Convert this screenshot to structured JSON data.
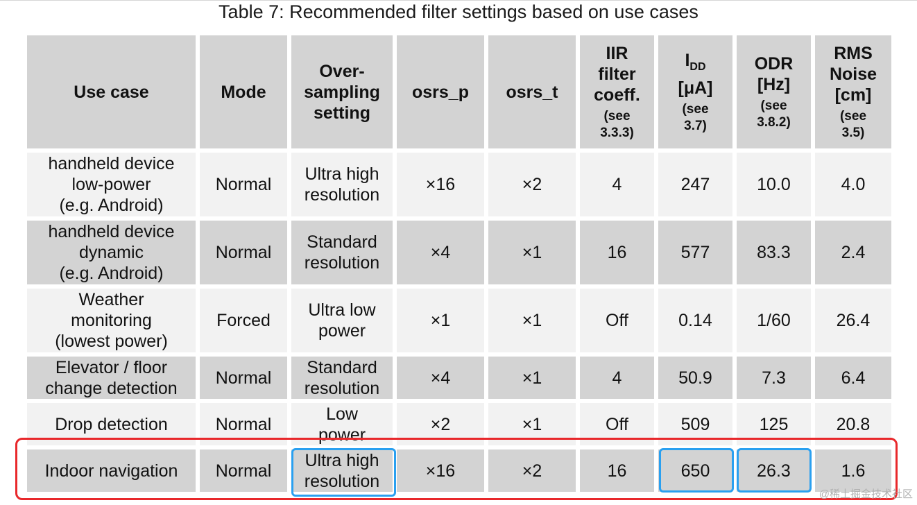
{
  "title": "Table 7: Recommended filter settings based on use cases",
  "header": {
    "use_case": "Use case",
    "mode": "Mode",
    "oversampling_lines": [
      "Over-",
      "sampling",
      "setting"
    ],
    "osrs_p": "osrs_p",
    "osrs_t": "osrs_t",
    "iir_lines": [
      "IIR",
      "filter",
      "coeff."
    ],
    "iir_note_lines": [
      "(see",
      "3.3.3)"
    ],
    "idd_main": "I",
    "idd_sub": "DD",
    "idd_unit": "[μA]",
    "idd_note_lines": [
      "(see",
      "3.7)"
    ],
    "odr_lines": [
      "ODR",
      "[Hz]"
    ],
    "odr_note_lines": [
      "(see",
      "3.8.2)"
    ],
    "rms_lines": [
      "RMS",
      "Noise",
      "[cm]"
    ],
    "rms_note_lines": [
      "(see",
      "3.5)"
    ]
  },
  "rows": [
    {
      "use_case_lines": [
        "handheld device",
        "low-power",
        "(e.g. Android)"
      ],
      "mode": "Normal",
      "oversampling_lines": [
        "Ultra high",
        "resolution"
      ],
      "osrs_p": "×16",
      "osrs_t": "×2",
      "iir": "4",
      "idd": "247",
      "odr": "10.0",
      "rms": "4.0"
    },
    {
      "use_case_lines": [
        "handheld device",
        "dynamic",
        "(e.g. Android)"
      ],
      "mode": "Normal",
      "oversampling_lines": [
        "Standard",
        "resolution"
      ],
      "osrs_p": "×4",
      "osrs_t": "×1",
      "iir": "16",
      "idd": "577",
      "odr": "83.3",
      "rms": "2.4"
    },
    {
      "use_case_lines": [
        "Weather",
        "monitoring",
        "(lowest power)"
      ],
      "mode": "Forced",
      "oversampling_lines": [
        "Ultra low",
        "power"
      ],
      "osrs_p": "×1",
      "osrs_t": "×1",
      "iir": "Off",
      "idd": "0.14",
      "odr": "1/60",
      "rms": "26.4"
    },
    {
      "use_case_lines": [
        "Elevator / floor",
        "change detection"
      ],
      "mode": "Normal",
      "oversampling_lines": [
        "Standard",
        "resolution"
      ],
      "osrs_p": "×4",
      "osrs_t": "×1",
      "iir": "4",
      "idd": "50.9",
      "odr": "7.3",
      "rms": "6.4"
    },
    {
      "use_case_lines": [
        "Drop detection"
      ],
      "mode": "Normal",
      "oversampling_lines": [
        "Low",
        "power"
      ],
      "osrs_p": "×2",
      "osrs_t": "×1",
      "iir": "Off",
      "idd": "509",
      "odr": "125",
      "rms": "20.8"
    },
    {
      "use_case_lines": [
        "Indoor navigation"
      ],
      "mode": "Normal",
      "oversampling_lines": [
        "Ultra high",
        "resolution"
      ],
      "osrs_p": "×16",
      "osrs_t": "×2",
      "iir": "16",
      "idd": "650",
      "odr": "26.3",
      "rms": "1.6"
    }
  ],
  "highlight_colors": {
    "row_box": "#e8282b",
    "cell_box": "#2aa0f0"
  },
  "watermark": "@稀土掘金技术社区"
}
